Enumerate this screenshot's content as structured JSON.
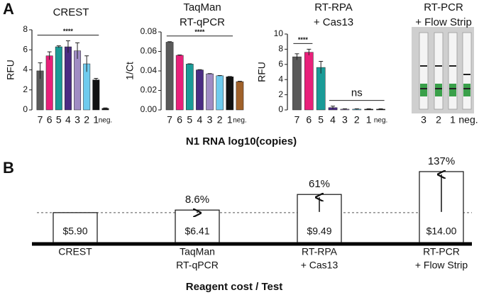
{
  "panel_labels": [
    "A",
    "B"
  ],
  "chart_data": [
    {
      "type": "bar",
      "title": [
        "CREST"
      ],
      "ylabel": "RFU",
      "categories": [
        "7",
        "6",
        "5",
        "4",
        "3",
        "2",
        "1",
        "neg."
      ],
      "values": [
        3.9,
        5.4,
        6.3,
        6.3,
        5.9,
        4.6,
        3.0,
        0.15
      ],
      "errors": [
        0.8,
        0.4,
        0.1,
        0.6,
        0.8,
        0.8,
        0.15,
        0.05
      ],
      "colors": [
        "#5a5a5a",
        "#e8207a",
        "#1a9b97",
        "#4b2c83",
        "#a08cc4",
        "#6fcbee",
        "#111111",
        "#111111"
      ],
      "ylim": [
        0,
        8
      ],
      "yticks": [
        0,
        2,
        4,
        6,
        8
      ],
      "annotations": [
        {
          "text": "****",
          "span": [
            "7",
            "1"
          ]
        }
      ]
    },
    {
      "type": "bar",
      "title": [
        "TaqMan",
        "RT-qPCR"
      ],
      "ylabel": "1/Ct",
      "categories": [
        "7",
        "6",
        "5",
        "4",
        "3",
        "2",
        "1",
        "neg."
      ],
      "values": [
        0.0695,
        0.056,
        0.047,
        0.041,
        0.037,
        0.035,
        0.034,
        0.029
      ],
      "errors": [
        0.0005,
        0.0004,
        0.0003,
        0.0003,
        0.0003,
        0.0003,
        0.0003,
        0.0004
      ],
      "colors": [
        "#5a5a5a",
        "#e8207a",
        "#1a9b97",
        "#4b2c83",
        "#a08cc4",
        "#6fcbee",
        "#111111",
        "#a0612a"
      ],
      "ylim": [
        0,
        0.08
      ],
      "yticks": [
        {
          "value": 0,
          "label": "0.00"
        },
        {
          "value": 0.02,
          "label": "0.02"
        },
        {
          "value": 0.04,
          "label": "0.04"
        },
        {
          "value": 0.06,
          "label": "0.06"
        },
        {
          "value": 0.08,
          "label": "0.08"
        }
      ],
      "annotations": [
        {
          "text": "****",
          "span": [
            "7",
            "1"
          ]
        }
      ]
    },
    {
      "type": "bar",
      "title": [
        "RT-RPA",
        "+ Cas13"
      ],
      "ylabel": "RFU",
      "categories": [
        "7",
        "6",
        "5",
        "4",
        "3",
        "2",
        "1",
        "neg."
      ],
      "values": [
        7.0,
        7.6,
        5.6,
        0.3,
        0.1,
        0.1,
        0.1,
        0.1
      ],
      "errors": [
        0.4,
        0.4,
        0.8,
        0.2,
        0.05,
        0.05,
        0.05,
        0.05
      ],
      "colors": [
        "#5a5a5a",
        "#e8207a",
        "#1a9b97",
        "#4b2c83",
        "#a08cc4",
        "#6fcbee",
        "#111111",
        "#111111"
      ],
      "ylim": [
        0,
        10
      ],
      "yticks": [
        0,
        2,
        4,
        6,
        8,
        10
      ],
      "annotations": [
        {
          "text": "****",
          "span": [
            "7",
            "6"
          ]
        },
        {
          "text": "ns",
          "span": [
            "4",
            "neg."
          ]
        }
      ]
    },
    {
      "type": "image",
      "title": [
        "RT-PCR",
        "+ Flow Strip"
      ],
      "categories": [
        "3",
        "2",
        "1",
        "neg."
      ]
    },
    {
      "type": "bar",
      "xlabel": "Reagent cost / Test",
      "categories": [
        [
          "CREST"
        ],
        [
          "TaqMan",
          "RT-qPCR"
        ],
        [
          "RT-RPA",
          "+ Cas13"
        ],
        [
          "RT-PCR",
          "+ Flow Strip"
        ]
      ],
      "values": [
        5.9,
        6.41,
        9.49,
        14.0
      ],
      "value_labels": [
        "$5.90",
        "$6.41",
        "$9.49",
        "$14.00"
      ],
      "change_labels": [
        null,
        "8.6%",
        "61%",
        "137%"
      ]
    }
  ],
  "xlabel": "N1 RNA log10(copies)"
}
